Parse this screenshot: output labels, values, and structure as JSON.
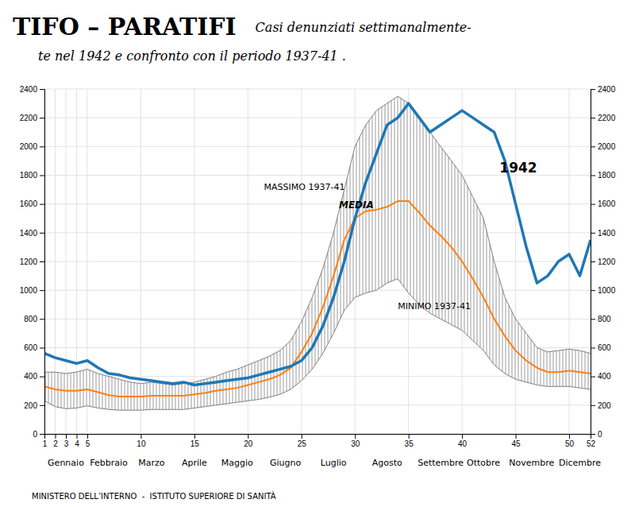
{
  "chart_data": {
    "type": "line",
    "title": "TIFO – PARATIFI",
    "subtitle": [
      "Casi denunziati settimanalmente-",
      "te nel 1942 e confronto con il periodo 1937-41 ."
    ],
    "footer": "MINISTERO DELL’INTERNO  -  ISTITUTO SUPERIORE DI SANITÀ",
    "x": [
      1,
      2,
      3,
      4,
      5,
      6,
      7,
      8,
      9,
      10,
      11,
      12,
      13,
      14,
      15,
      16,
      17,
      18,
      19,
      20,
      21,
      22,
      23,
      24,
      25,
      26,
      27,
      28,
      29,
      30,
      31,
      32,
      33,
      34,
      35,
      36,
      37,
      38,
      39,
      40,
      41,
      42,
      43,
      44,
      45,
      46,
      47,
      48,
      49,
      50,
      51,
      52
    ],
    "series": [
      {
        "type": "band",
        "values": [
          430,
          430,
          420,
          430,
          450,
          420,
          400,
          380,
          360,
          350,
          360,
          350,
          340,
          350,
          360,
          380,
          400,
          430,
          450,
          480,
          510,
          540,
          580,
          650,
          780,
          950,
          1150,
          1400,
          1700,
          2000,
          2150,
          2250,
          2300,
          2350,
          2300,
          2200,
          2100,
          2000,
          1900,
          1800,
          1650,
          1500,
          1200,
          950,
          800,
          700,
          600,
          570,
          580,
          590,
          580,
          560
        ]
      },
      {
        "type": "band",
        "values": [
          230,
          190,
          175,
          180,
          195,
          180,
          170,
          165,
          165,
          165,
          170,
          170,
          170,
          170,
          180,
          190,
          200,
          210,
          220,
          230,
          240,
          255,
          275,
          310,
          370,
          450,
          560,
          700,
          860,
          950,
          980,
          1000,
          1050,
          1080,
          980,
          900,
          840,
          800,
          760,
          720,
          650,
          580,
          480,
          420,
          380,
          360,
          340,
          330,
          330,
          330,
          320,
          310
        ]
      },
      {
        "type": "line",
        "values": [
          330,
          310,
          300,
          300,
          310,
          290,
          270,
          260,
          260,
          260,
          265,
          265,
          265,
          265,
          275,
          285,
          300,
          310,
          320,
          340,
          360,
          380,
          410,
          460,
          570,
          700,
          880,
          1100,
          1350,
          1500,
          1550,
          1560,
          1580,
          1620,
          1620,
          1540,
          1450,
          1380,
          1300,
          1200,
          1080,
          950,
          800,
          680,
          580,
          510,
          460,
          430,
          430,
          440,
          430,
          420
        ]
      },
      {
        "type": "line",
        "values": [
          560,
          530,
          510,
          490,
          510,
          460,
          420,
          410,
          390,
          380,
          370,
          360,
          350,
          360,
          340,
          350,
          360,
          370,
          380,
          390,
          410,
          430,
          450,
          470,
          510,
          600,
          750,
          950,
          1200,
          1500,
          1750,
          1950,
          2150,
          2200,
          2300,
          2200,
          2100,
          2150,
          2200,
          2250,
          2200,
          2150,
          2100,
          1900,
          1600,
          1300,
          1050,
          1100,
          1200,
          1250,
          1100,
          1350
        ]
      }
    ],
    "xlim": [
      1,
      52
    ],
    "xticks": [
      1,
      2,
      3,
      4,
      5,
      10,
      15,
      20,
      25,
      30,
      35,
      40,
      45,
      50,
      52
    ],
    "ylim": [
      0,
      2400
    ],
    "yticks": [
      0,
      200,
      400,
      600,
      800,
      1000,
      1200,
      1400,
      1600,
      1800,
      2000,
      2200,
      2400
    ],
    "y2lim": [
      0,
      2400
    ],
    "y2ticks": [
      0,
      200,
      400,
      600,
      800,
      1000,
      1200,
      1400,
      1600,
      1800,
      2000,
      2200,
      2400
    ],
    "month_labels": [
      {
        "value": 3.0,
        "label": "Gennaio"
      },
      {
        "value": 7.0,
        "label": "Febbraio"
      },
      {
        "value": 11.0,
        "label": "Marzo"
      },
      {
        "value": 15.0,
        "label": "Aprile"
      },
      {
        "value": 19.0,
        "label": "Maggio"
      },
      {
        "value": 23.5,
        "label": "Giugno"
      },
      {
        "value": 28.0,
        "label": "Luglio"
      },
      {
        "value": 33.0,
        "label": "Agosto"
      },
      {
        "value": 38.0,
        "label": "Settembre"
      },
      {
        "value": 42.0,
        "label": "Ottobre"
      },
      {
        "value": 46.5,
        "label": "Novembre"
      },
      {
        "value": 51.0,
        "label": "Dicembre"
      }
    ],
    "annotations": [
      {
        "text": "MASSIMO 1937-41",
        "x": 21.5,
        "y": 1700
      },
      {
        "text": "MEDIA",
        "x": 28.5,
        "y": 1570
      },
      {
        "text": "MINIMO 1937-41",
        "x": 34.0,
        "y": 870
      },
      {
        "text": "1942",
        "x": 43.5,
        "y": 1820
      }
    ],
    "grid": true
  }
}
